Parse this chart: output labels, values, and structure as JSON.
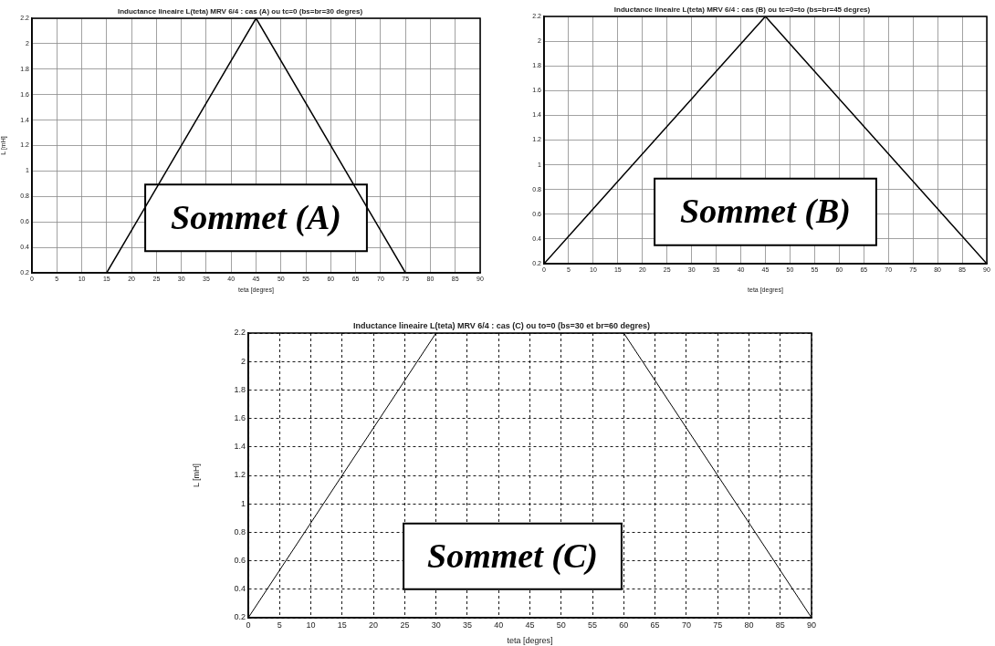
{
  "chart_data": [
    {
      "type": "line",
      "title": "Inductance lineaire L(teta) MRV 6/4 : cas (A) ou tc=0 (bs=br=30 degres)",
      "xlabel": "teta [degres]",
      "ylabel": "L [mH]",
      "x": [
        0,
        15,
        45,
        75,
        90
      ],
      "values": [
        0.2,
        0.2,
        2.2,
        0.2,
        0.2
      ],
      "color": "#000000",
      "xlim": [
        0,
        90
      ],
      "xticks": [
        0,
        5,
        10,
        15,
        20,
        25,
        30,
        35,
        40,
        45,
        50,
        55,
        60,
        65,
        70,
        75,
        80,
        85,
        90
      ],
      "ylim": [
        0.2,
        2.2
      ],
      "yticks": [
        0.2,
        0.4,
        0.6,
        0.8,
        1,
        1.2,
        1.4,
        1.6,
        1.8,
        2,
        2.2
      ],
      "grid": true,
      "line_style": "solid",
      "annotations": [
        "Sommet (A)"
      ]
    },
    {
      "type": "line",
      "title": "Inductance lineaire L(teta) MRV 6/4 : cas (B) ou tc=0=to (bs=br=45 degres)",
      "xlabel": "teta [degres]",
      "x": [
        0,
        45,
        90
      ],
      "values": [
        0.2,
        2.2,
        0.2
      ],
      "color": "#000000",
      "xlim": [
        0,
        90
      ],
      "xticks": [
        0,
        5,
        10,
        15,
        20,
        25,
        30,
        35,
        40,
        45,
        50,
        55,
        60,
        65,
        70,
        75,
        80,
        85,
        90
      ],
      "ylim": [
        0.2,
        2.2
      ],
      "yticks": [
        0.2,
        0.4,
        0.6,
        0.8,
        1,
        1.2,
        1.4,
        1.6,
        1.8,
        2,
        2.2
      ],
      "grid": true,
      "line_style": "solid",
      "annotations": [
        "Sommet (B)"
      ]
    },
    {
      "type": "line",
      "title": "Inductance lineaire L(teta) MRV 6/4 : cas (C) ou to=0 (bs=30 et br=60 degres)",
      "xlabel": "teta [degres]",
      "ylabel": "L [mH]",
      "x": [
        0,
        30,
        60,
        90
      ],
      "values": [
        0.2,
        2.2,
        2.2,
        0.2
      ],
      "color": "#000000",
      "xlim": [
        0,
        90
      ],
      "xticks": [
        0,
        5,
        10,
        15,
        20,
        25,
        30,
        35,
        40,
        45,
        50,
        55,
        60,
        65,
        70,
        75,
        80,
        85,
        90
      ],
      "ylim": [
        0.2,
        2.2
      ],
      "yticks": [
        0.2,
        0.4,
        0.6,
        0.8,
        1,
        1.2,
        1.4,
        1.6,
        1.8,
        2,
        2.2
      ],
      "grid": true,
      "line_style": "solid",
      "annotations": [
        "Sommet (C)"
      ]
    }
  ]
}
